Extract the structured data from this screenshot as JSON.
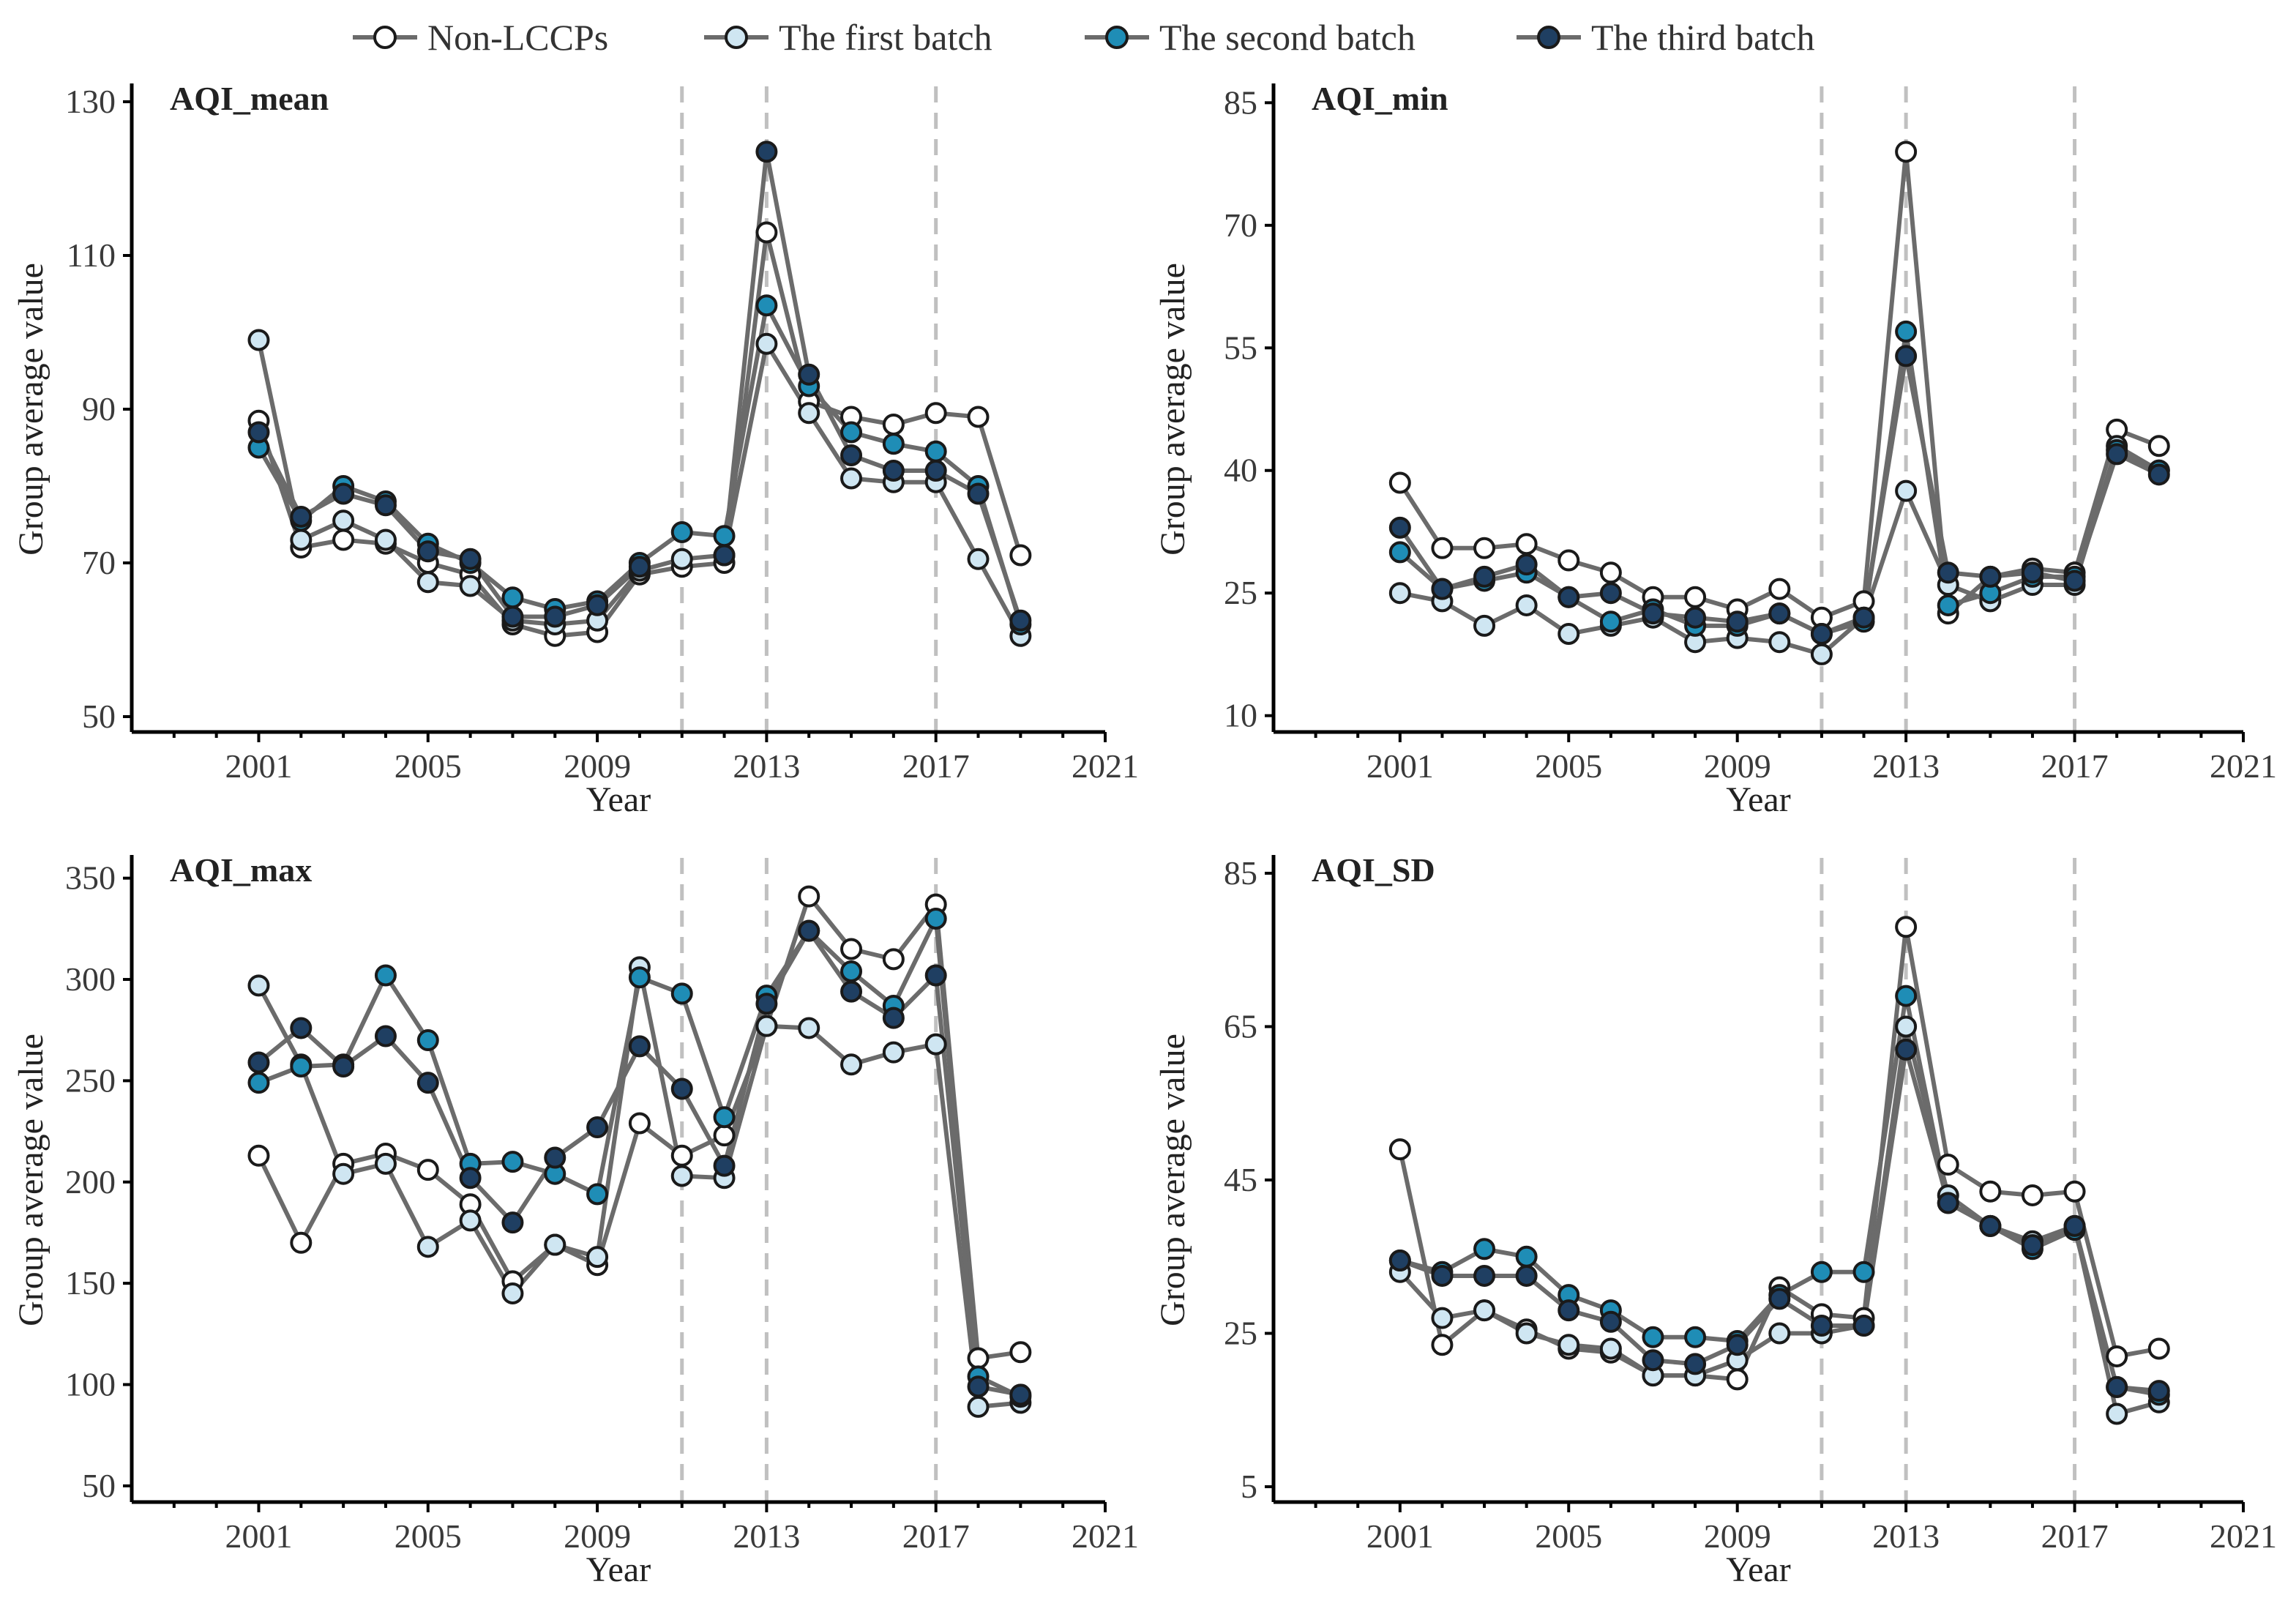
{
  "legend": [
    {
      "name": "Non-LCCPs",
      "color": "#ffffff"
    },
    {
      "name": "The first batch",
      "color": "#cfe6f2"
    },
    {
      "name": "The second batch",
      "color": "#1f8db6"
    },
    {
      "name": "The third batch",
      "color": "#1f3f62"
    }
  ],
  "chart_data": [
    {
      "type": "line",
      "title": "AQI_mean",
      "xlabel": "Year",
      "ylabel": "Group average value",
      "xlim": [
        1998,
        2021
      ],
      "ylim": [
        48,
        132
      ],
      "xticks": [
        2001,
        2005,
        2009,
        2013,
        2017,
        2021
      ],
      "yticks": [
        50,
        70,
        90,
        110,
        130
      ],
      "vlines": [
        2011,
        2013,
        2017
      ],
      "x": [
        2001,
        2002,
        2003,
        2004,
        2005,
        2006,
        2007,
        2008,
        2009,
        2010,
        2011,
        2012,
        2013,
        2014,
        2015,
        2016,
        2017,
        2018,
        2019
      ],
      "series": [
        {
          "name": "Non-LCCPs",
          "values": [
            88.5,
            72.0,
            73.0,
            72.5,
            70.0,
            68.5,
            62.0,
            60.5,
            61.0,
            68.5,
            69.5,
            70.0,
            113.0,
            91.0,
            89.0,
            88.0,
            89.5,
            89.0,
            71.0
          ]
        },
        {
          "name": "The first batch",
          "values": [
            99.0,
            73.0,
            75.5,
            73.0,
            67.5,
            67.0,
            62.5,
            62.0,
            62.5,
            69.0,
            70.5,
            71.0,
            98.5,
            89.5,
            81.0,
            80.5,
            80.5,
            70.5,
            60.5
          ]
        },
        {
          "name": "The second batch",
          "values": [
            85.0,
            75.5,
            80.0,
            78.0,
            72.5,
            70.0,
            65.5,
            64.0,
            65.0,
            70.0,
            74.0,
            73.5,
            103.5,
            93.0,
            87.0,
            85.5,
            84.5,
            80.0,
            62.0
          ]
        },
        {
          "name": "The third batch",
          "values": [
            87.0,
            76.0,
            79.0,
            77.5,
            71.5,
            70.5,
            63.0,
            63.0,
            64.5,
            69.5,
            null,
            71.0,
            123.5,
            94.5,
            84.0,
            82.0,
            82.0,
            79.0,
            62.5
          ]
        }
      ]
    },
    {
      "type": "line",
      "title": "AQI_min",
      "xlabel": "Year",
      "ylabel": "Group average value",
      "xlim": [
        1998,
        2021
      ],
      "ylim": [
        8,
        87
      ],
      "xticks": [
        2001,
        2005,
        2009,
        2013,
        2017,
        2021
      ],
      "yticks": [
        10,
        25,
        40,
        55,
        70,
        85
      ],
      "vlines": [
        2011,
        2013,
        2017
      ],
      "x": [
        2001,
        2002,
        2003,
        2004,
        2005,
        2006,
        2007,
        2008,
        2009,
        2010,
        2011,
        2012,
        2013,
        2014,
        2015,
        2016,
        2017,
        2018,
        2019
      ],
      "series": [
        {
          "name": "Non-LCCPs",
          "values": [
            38.5,
            30.5,
            30.5,
            31.0,
            29.0,
            27.5,
            24.5,
            24.5,
            23.0,
            25.5,
            22.0,
            24.0,
            79.0,
            22.5,
            27.0,
            28.0,
            27.5,
            45.0,
            43.0
          ]
        },
        {
          "name": "The first batch",
          "values": [
            25.0,
            24.0,
            21.0,
            23.5,
            20.0,
            21.0,
            22.0,
            19.0,
            19.5,
            19.0,
            17.5,
            22.0,
            37.5,
            26.0,
            24.0,
            26.0,
            26.0,
            43.0,
            40.0
          ]
        },
        {
          "name": "The second batch",
          "values": [
            30.0,
            25.5,
            26.5,
            27.5,
            24.5,
            21.5,
            23.0,
            21.0,
            21.0,
            22.5,
            20.0,
            21.5,
            57.0,
            23.5,
            25.0,
            27.0,
            27.0,
            42.5,
            40.0
          ]
        },
        {
          "name": "The third batch",
          "values": [
            33.0,
            25.5,
            27.0,
            28.5,
            24.5,
            25.0,
            22.5,
            22.0,
            21.5,
            22.5,
            20.0,
            22.0,
            54.0,
            27.5,
            27.0,
            27.5,
            26.5,
            42.0,
            39.5
          ]
        }
      ]
    },
    {
      "type": "line",
      "title": "AQI_max",
      "xlabel": "Year",
      "ylabel": "Group average value",
      "xlim": [
        1998,
        2021
      ],
      "ylim": [
        42,
        360
      ],
      "xticks": [
        2001,
        2005,
        2009,
        2013,
        2017,
        2021
      ],
      "yticks": [
        50,
        100,
        150,
        200,
        250,
        300,
        350
      ],
      "vlines": [
        2011,
        2013,
        2017
      ],
      "x": [
        2001,
        2002,
        2003,
        2004,
        2005,
        2006,
        2007,
        2008,
        2009,
        2010,
        2011,
        2012,
        2013,
        2014,
        2015,
        2016,
        2017,
        2018,
        2019
      ],
      "series": [
        {
          "name": "Non-LCCPs",
          "values": [
            213,
            170,
            209,
            214,
            206,
            189,
            151,
            169,
            159,
            229,
            213,
            223,
            277,
            341,
            315,
            310,
            337,
            113,
            116
          ]
        },
        {
          "name": "The first batch",
          "values": [
            297,
            258,
            204,
            209,
            168,
            181,
            145,
            169,
            163,
            306,
            203,
            202,
            277,
            276,
            258,
            264,
            268,
            89,
            91
          ]
        },
        {
          "name": "The second batch",
          "values": [
            249,
            257,
            258,
            302,
            270,
            209,
            210,
            204,
            194,
            301,
            293,
            232,
            292,
            324,
            304,
            287,
            330,
            104,
            94
          ]
        },
        {
          "name": "The third batch",
          "values": [
            259,
            276,
            257,
            272,
            249,
            202,
            180,
            212,
            227,
            267,
            246,
            208,
            288,
            324,
            294,
            281,
            302,
            99,
            95
          ]
        }
      ]
    },
    {
      "type": "line",
      "title": "AQI_SD",
      "xlabel": "Year",
      "ylabel": "Group average value",
      "xlim": [
        1998,
        2021
      ],
      "ylim": [
        3,
        87
      ],
      "xticks": [
        2001,
        2005,
        2009,
        2013,
        2017,
        2021
      ],
      "yticks": [
        5,
        25,
        45,
        65,
        85
      ],
      "vlines": [
        2011,
        2013,
        2017
      ],
      "x": [
        2001,
        2002,
        2003,
        2004,
        2005,
        2006,
        2007,
        2008,
        2009,
        2010,
        2011,
        2012,
        2013,
        2014,
        2015,
        2016,
        2017,
        2018,
        2019
      ],
      "series": [
        {
          "name": "Non-LCCPs",
          "values": [
            49.0,
            23.5,
            28.0,
            25.5,
            23.0,
            22.5,
            19.5,
            19.5,
            19.0,
            31.0,
            27.5,
            27.0,
            78.0,
            47.0,
            43.5,
            43.0,
            43.5,
            22.0,
            23.0
          ]
        },
        {
          "name": "The first batch",
          "values": [
            33.0,
            27.0,
            28.0,
            25.0,
            23.5,
            23.0,
            19.5,
            19.5,
            21.5,
            25.0,
            25.0,
            26.0,
            65.0,
            43.0,
            39.0,
            37.0,
            39.0,
            14.5,
            16.0
          ]
        },
        {
          "name": "The second batch",
          "values": [
            34.5,
            33.0,
            36.0,
            35.0,
            30.0,
            28.0,
            24.5,
            24.5,
            24.0,
            30.0,
            33.0,
            33.0,
            69.0,
            42.0,
            39.0,
            36.0,
            38.5,
            18.0,
            17.0
          ]
        },
        {
          "name": "The third batch",
          "values": [
            34.5,
            32.5,
            32.5,
            32.5,
            28.0,
            26.5,
            21.5,
            21.0,
            23.5,
            29.5,
            26.0,
            26.0,
            62.0,
            42.0,
            39.0,
            36.5,
            39.0,
            18.0,
            17.5
          ]
        }
      ]
    }
  ]
}
